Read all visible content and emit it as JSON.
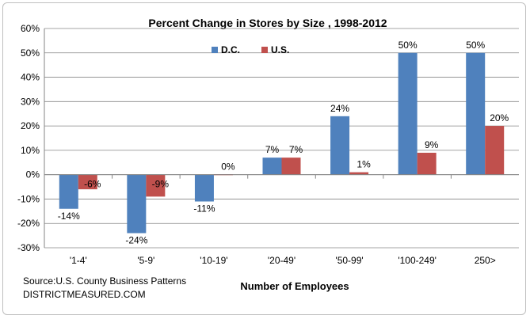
{
  "chart_data": {
    "type": "bar",
    "title": "Percent Change  in Stores by Size , 1998-2012",
    "xlabel": "Number of Employees",
    "ylabel": "",
    "ylim": [
      -30,
      60
    ],
    "yticks": [
      -30,
      -20,
      -10,
      0,
      10,
      20,
      30,
      40,
      50,
      60
    ],
    "ytick_format": "percent",
    "grid": true,
    "legend_position": "top-center",
    "categories": [
      "'1-4'",
      "'5-9'",
      "'10-19'",
      "'20-49'",
      "'50-99'",
      "'100-249'",
      "250>"
    ],
    "series": [
      {
        "name": "D.C.",
        "color": "#4f81bd",
        "values": [
          -14,
          -24,
          -11,
          7,
          24,
          50,
          50
        ],
        "labels": [
          "-14%",
          "-24%",
          "-11%",
          "7%",
          "24%",
          "50%",
          "50%"
        ]
      },
      {
        "name": "U.S.",
        "color": "#c0504d",
        "values": [
          -6,
          -9,
          0,
          7,
          1,
          9,
          20
        ],
        "labels": [
          "-6%",
          "-9%",
          "0%",
          "7%",
          "1%",
          "9%",
          "20%"
        ]
      }
    ]
  },
  "source": {
    "line1": "Source:U.S. County Business Patterns",
    "line2": "DISTRICTMEASURED.COM"
  }
}
